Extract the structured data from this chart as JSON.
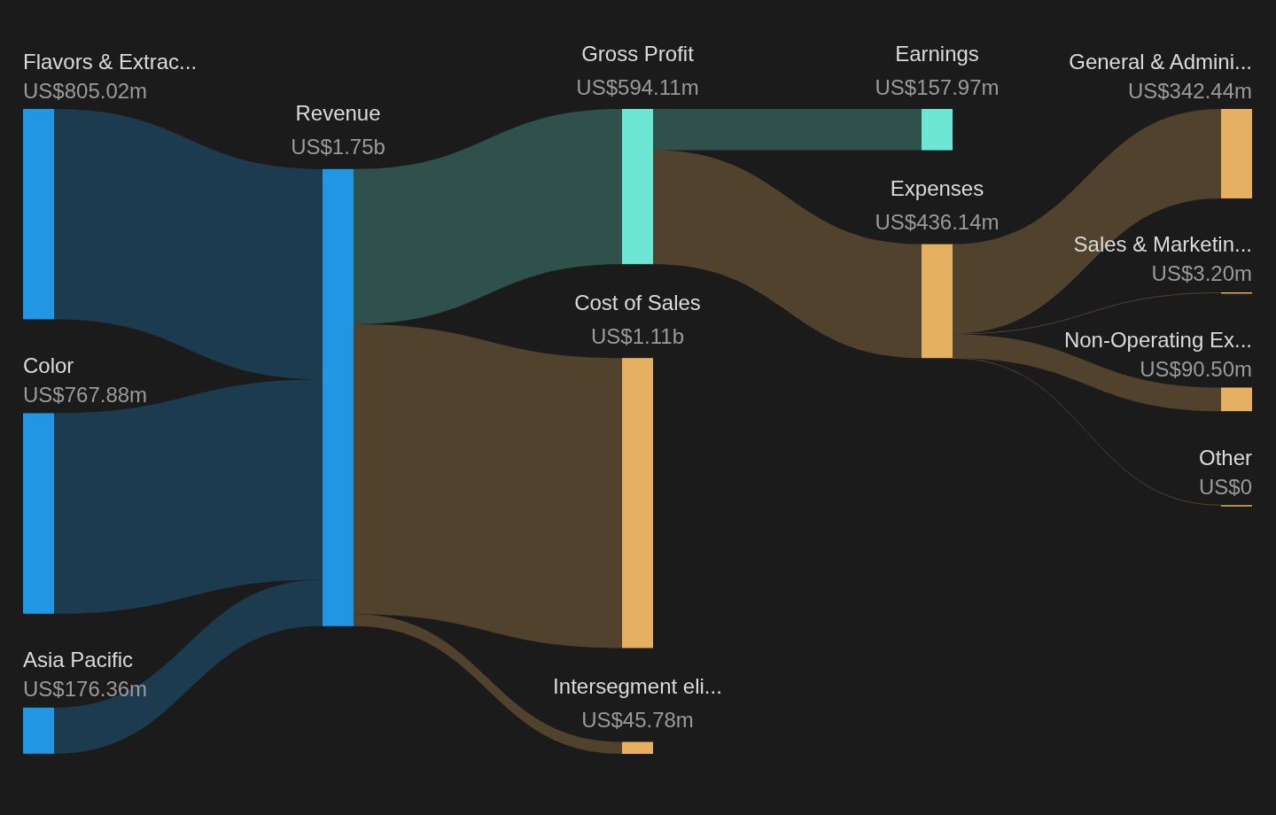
{
  "chart_data": {
    "type": "other",
    "categories": [
      "Flavors & Extrac...",
      "Color",
      "Asia Pacific",
      "Revenue",
      "Gross Profit",
      "Cost of Sales",
      "Intersegment eli...",
      "Earnings",
      "Expenses",
      "General & Admini...",
      "Sales & Marketin...",
      "Non-Operating Ex...",
      "Other"
    ],
    "colors": [
      "#2196e3",
      "#2196e3",
      "#2196e3",
      "#2196e3",
      "#6ee6d4",
      "#e6b062",
      "#e6b062",
      "#6ee6d4",
      "#e6b062",
      "#e6b062",
      "#e6b062",
      "#e6b062",
      "#e6b062"
    ],
    "series": [
      {
        "values": [
          805020000,
          767880000,
          176360000,
          null,
          null,
          null,
          null,
          null,
          null,
          null,
          null,
          null,
          null
        ],
        "value_labels": [
          "US$805.02m",
          "US$767.88m",
          "US$176.36m",
          null,
          null,
          null,
          null,
          null,
          null,
          null,
          null,
          null,
          null
        ]
      },
      {
        "values": [
          null,
          null,
          null,
          1750000000,
          null,
          null,
          null,
          null,
          null,
          null,
          null,
          null,
          null
        ],
        "value_labels": [
          null,
          null,
          null,
          "US$1.75b",
          null,
          null,
          null,
          null,
          null,
          null,
          null,
          null,
          null
        ]
      },
      {
        "values": [
          null,
          null,
          null,
          null,
          594110000,
          1110000000,
          45780000,
          null,
          null,
          null,
          null,
          null,
          null
        ],
        "value_labels": [
          null,
          null,
          null,
          null,
          "US$594.11m",
          "US$1.11b",
          "US$45.78m",
          null,
          null,
          null,
          null,
          null,
          null
        ]
      },
      {
        "values": [
          null,
          null,
          null,
          null,
          null,
          null,
          null,
          157970000,
          436140000,
          null,
          null,
          null,
          null
        ],
        "value_labels": [
          null,
          null,
          null,
          null,
          null,
          null,
          null,
          "US$157.97m",
          "US$436.14m",
          null,
          null,
          null,
          null
        ]
      },
      {
        "values": [
          null,
          null,
          null,
          null,
          null,
          null,
          null,
          null,
          null,
          342440000,
          3200000,
          90500000,
          0
        ],
        "value_labels": [
          null,
          null,
          null,
          null,
          null,
          null,
          null,
          null,
          null,
          "US$342.44m",
          "US$3.20m",
          "US$90.50m",
          "US$0"
        ]
      }
    ]
  }
}
